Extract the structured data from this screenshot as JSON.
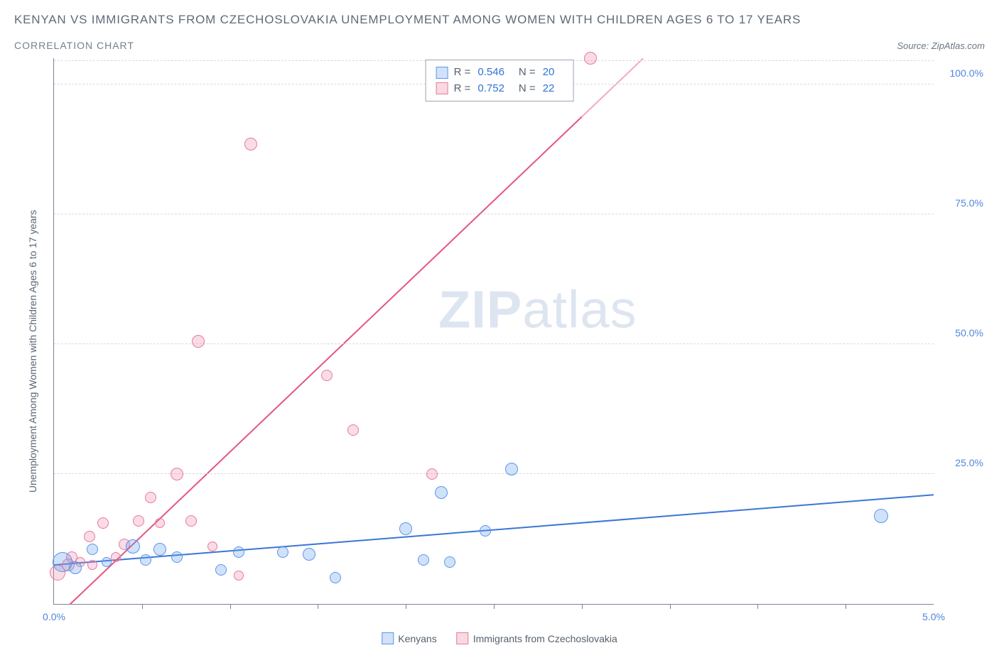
{
  "header": {
    "title": "KENYAN VS IMMIGRANTS FROM CZECHOSLOVAKIA UNEMPLOYMENT AMONG WOMEN WITH CHILDREN AGES 6 TO 17 YEARS",
    "subtitle": "CORRELATION CHART",
    "source_prefix": "Source: ",
    "source_name": "ZipAtlas.com"
  },
  "stats": {
    "series1": {
      "r": "0.546",
      "n": "20"
    },
    "series2": {
      "r": "0.752",
      "n": "22"
    }
  },
  "legend": {
    "s1": "Kenyans",
    "s2": "Immigrants from Czechoslovakia"
  },
  "axes": {
    "ylabel": "Unemployment Among Women with Children Ages 6 to 17 years",
    "x_min": 0.0,
    "x_max": 5.0,
    "y_min": 0.0,
    "y_max": 105.0,
    "x_ticks": [
      0.0,
      5.0
    ],
    "x_tick_labels": [
      "0.0%",
      "5.0%"
    ],
    "x_minor": [
      0.5,
      1.0,
      1.5,
      2.0,
      2.5,
      3.0,
      3.5,
      4.0,
      4.5
    ],
    "y_ticks": [
      25.0,
      50.0,
      75.0,
      100.0
    ],
    "y_tick_labels": [
      "25.0%",
      "50.0%",
      "75.0%",
      "100.0%"
    ]
  },
  "style": {
    "bg": "#ffffff",
    "grid": "#d6dbe2",
    "axis": "#7a8596",
    "blue_stroke": "#3a76d6",
    "blue_fill": "rgba(100,160,235,0.30)",
    "pink_stroke": "#e4567f",
    "pink_fill": "rgba(235,130,160,0.28)",
    "text_axis": "#4f86dd",
    "text_body": "#5a6675",
    "point_r_min": 6,
    "point_r_max": 16
  },
  "series": {
    "blue": {
      "trend": {
        "x1": 0.0,
        "y1": 7.5,
        "x2": 5.0,
        "y2": 21.0
      },
      "points": [
        {
          "x": 0.05,
          "y": 8.0,
          "r": 14
        },
        {
          "x": 0.12,
          "y": 7.0,
          "r": 9
        },
        {
          "x": 0.22,
          "y": 10.5,
          "r": 8
        },
        {
          "x": 0.3,
          "y": 8.0,
          "r": 7
        },
        {
          "x": 0.45,
          "y": 11.0,
          "r": 10
        },
        {
          "x": 0.52,
          "y": 8.5,
          "r": 8
        },
        {
          "x": 0.6,
          "y": 10.5,
          "r": 9
        },
        {
          "x": 0.7,
          "y": 9.0,
          "r": 8
        },
        {
          "x": 0.95,
          "y": 6.5,
          "r": 8
        },
        {
          "x": 1.05,
          "y": 10.0,
          "r": 8
        },
        {
          "x": 1.3,
          "y": 10.0,
          "r": 8
        },
        {
          "x": 1.45,
          "y": 9.5,
          "r": 9
        },
        {
          "x": 1.6,
          "y": 5.0,
          "r": 8
        },
        {
          "x": 2.0,
          "y": 14.5,
          "r": 9
        },
        {
          "x": 2.1,
          "y": 8.5,
          "r": 8
        },
        {
          "x": 2.25,
          "y": 8.0,
          "r": 8
        },
        {
          "x": 2.2,
          "y": 21.5,
          "r": 9
        },
        {
          "x": 2.6,
          "y": 26.0,
          "r": 9
        },
        {
          "x": 2.45,
          "y": 14.0,
          "r": 8
        },
        {
          "x": 4.7,
          "y": 17.0,
          "r": 10
        }
      ]
    },
    "pink": {
      "trend": {
        "x1": 0.0,
        "y1": -3.0,
        "x2": 3.35,
        "y2": 105.0
      },
      "dash_from_x": 3.0,
      "points": [
        {
          "x": 0.02,
          "y": 6.0,
          "r": 11
        },
        {
          "x": 0.08,
          "y": 7.5,
          "r": 9
        },
        {
          "x": 0.1,
          "y": 9.0,
          "r": 8
        },
        {
          "x": 0.15,
          "y": 8.0,
          "r": 7
        },
        {
          "x": 0.2,
          "y": 13.0,
          "r": 8
        },
        {
          "x": 0.22,
          "y": 7.5,
          "r": 7
        },
        {
          "x": 0.28,
          "y": 15.5,
          "r": 8
        },
        {
          "x": 0.35,
          "y": 9.0,
          "r": 7
        },
        {
          "x": 0.4,
          "y": 11.5,
          "r": 8
        },
        {
          "x": 0.48,
          "y": 16.0,
          "r": 8
        },
        {
          "x": 0.55,
          "y": 20.5,
          "r": 8
        },
        {
          "x": 0.6,
          "y": 15.5,
          "r": 7
        },
        {
          "x": 0.7,
          "y": 25.0,
          "r": 9
        },
        {
          "x": 0.78,
          "y": 16.0,
          "r": 8
        },
        {
          "x": 0.82,
          "y": 50.5,
          "r": 9
        },
        {
          "x": 0.9,
          "y": 11.0,
          "r": 7
        },
        {
          "x": 1.05,
          "y": 5.5,
          "r": 7
        },
        {
          "x": 1.12,
          "y": 88.5,
          "r": 9
        },
        {
          "x": 1.55,
          "y": 44.0,
          "r": 8
        },
        {
          "x": 1.7,
          "y": 33.5,
          "r": 8
        },
        {
          "x": 2.15,
          "y": 25.0,
          "r": 8
        },
        {
          "x": 3.05,
          "y": 105.0,
          "r": 9
        }
      ]
    }
  },
  "watermark": {
    "bold": "ZIP",
    "light": "atlas"
  }
}
